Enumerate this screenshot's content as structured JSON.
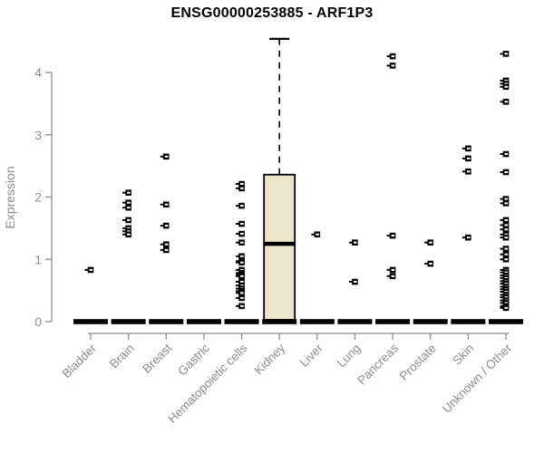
{
  "title": "ENSG00000253885 - ARF1P3",
  "colors": {
    "background": "#ffffff",
    "title_text": "#000000",
    "axis": "#8e8e8e",
    "axis_label_text": "#8e8e8e",
    "box_fill": "#ece5cc",
    "box_stroke": "#000000",
    "point": "#000000",
    "zero_bar": "#000000"
  },
  "chart_data": {
    "type": "boxplot",
    "title": "ENSG00000253885 - ARF1P3",
    "xlabel": "",
    "ylabel": "Expression",
    "ylim": [
      0,
      4.6
    ],
    "yticks": [
      0,
      1,
      2,
      3,
      4
    ],
    "grid": false,
    "legend": false,
    "x_tick_label_rotation_deg": 45,
    "categories": [
      "Bladder",
      "Brain",
      "Breast",
      "Gastric",
      "Hematopoietic cells",
      "Kidney",
      "Liver",
      "Lung",
      "Pancreas",
      "Prostate",
      "Skin",
      "Unknown / Other"
    ],
    "series": [
      {
        "category": "Bladder",
        "zero_bar": true,
        "points": [
          0.83
        ]
      },
      {
        "category": "Brain",
        "zero_bar": true,
        "points": [
          2.07,
          1.91,
          1.83,
          1.63,
          1.5,
          1.45,
          1.4
        ]
      },
      {
        "category": "Breast",
        "zero_bar": true,
        "points": [
          2.65,
          1.88,
          1.54,
          1.24,
          1.15
        ]
      },
      {
        "category": "Gastric",
        "zero_bar": true,
        "points": []
      },
      {
        "category": "Hematopoietic cells",
        "zero_bar": true,
        "points": [
          2.21,
          2.14,
          1.86,
          1.57,
          1.41,
          1.27,
          1.05,
          0.97,
          0.95,
          0.83,
          0.78,
          0.75,
          0.73,
          0.64,
          0.58,
          0.53,
          0.49,
          0.46,
          0.38,
          0.25
        ]
      },
      {
        "category": "Kidney",
        "zero_bar": true,
        "points": []
      },
      {
        "category": "Liver",
        "zero_bar": true,
        "points": [
          1.4
        ]
      },
      {
        "category": "Lung",
        "zero_bar": true,
        "points": [
          1.27,
          0.64
        ]
      },
      {
        "category": "Pancreas",
        "zero_bar": true,
        "points": [
          4.26,
          4.11,
          1.38,
          0.83,
          0.73
        ]
      },
      {
        "category": "Prostate",
        "zero_bar": true,
        "points": [
          1.27,
          0.93
        ]
      },
      {
        "category": "Skin",
        "zero_bar": true,
        "points": [
          2.78,
          2.62,
          2.41,
          1.35
        ]
      },
      {
        "category": "Unknown / Other",
        "zero_bar": true,
        "points": [
          4.3,
          3.87,
          3.82,
          3.77,
          3.53,
          2.69,
          2.4,
          1.97,
          1.9,
          1.63,
          1.55,
          1.48,
          1.4,
          1.35,
          1.17,
          1.08,
          1.0,
          0.83,
          0.79,
          0.74,
          0.7,
          0.65,
          0.61,
          0.56,
          0.52,
          0.48,
          0.43,
          0.39,
          0.34,
          0.3,
          0.25,
          0.22
        ]
      }
    ],
    "boxes": [
      {
        "category": "Kidney",
        "whisker_high": 4.54,
        "q3": 2.36,
        "median": 1.25,
        "q1": 0.03,
        "whisker_low": null
      }
    ]
  }
}
